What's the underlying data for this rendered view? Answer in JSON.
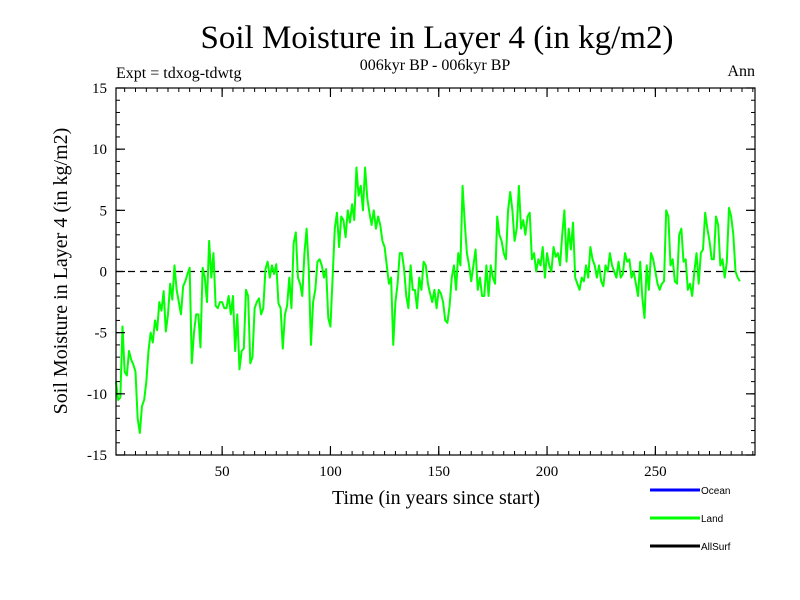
{
  "chart_data": {
    "type": "line",
    "title": "Soil Moisture in Layer 4 (in kg/m2)",
    "subtitle": "006kyr BP - 006kyr BP",
    "expt_label": "Expt = tdxog-tdwtg",
    "season_label": "Ann",
    "xlabel": "Time (in years since start)",
    "ylabel": "Soil Moisture in Layer 4 (in kg/m2)",
    "xlim": [
      1,
      296
    ],
    "ylim": [
      -15,
      15
    ],
    "x_ticks": [
      50,
      100,
      150,
      200,
      250
    ],
    "y_ticks": [
      -15,
      -10,
      -5,
      0,
      5,
      10,
      15
    ],
    "zero_line": true,
    "grid": false,
    "legend_position": "bottom-right",
    "legend": [
      {
        "name": "Ocean",
        "color": "#0000ff"
      },
      {
        "name": "Land",
        "color": "#00ff00"
      },
      {
        "name": "AllSurf",
        "color": "#000000"
      }
    ],
    "series": [
      {
        "name": "Land",
        "color": "#00ff00",
        "x_start": 1,
        "x_step": 1,
        "values": [
          -9.0,
          -10.5,
          -10.3,
          -4.5,
          -8.2,
          -8.5,
          -6.5,
          -7.2,
          -7.6,
          -8.2,
          -12.0,
          -13.2,
          -11.0,
          -10.5,
          -9.0,
          -6.5,
          -5.0,
          -5.8,
          -4.0,
          -4.8,
          -2.5,
          -3.2,
          -1.6,
          -4.9,
          -3.5,
          -1.0,
          -2.3,
          0.5,
          -1.5,
          -2.5,
          -3.5,
          -1.2,
          -0.8,
          -0.2,
          0.3,
          -7.5,
          -5.0,
          -3.5,
          -3.5,
          -6.2,
          0.3,
          -0.5,
          -2.5,
          2.5,
          -0.5,
          1.5,
          -2.8,
          -3.0,
          -2.5,
          -2.5,
          -3.0,
          -3.0,
          -2.0,
          -3.5,
          -2.0,
          -6.5,
          -3.5,
          -8.0,
          -6.5,
          -6.3,
          -1.5,
          -2.0,
          -7.5,
          -7.0,
          -3.0,
          -2.5,
          -2.2,
          -3.5,
          -3.0,
          0.2,
          0.8,
          -0.5,
          0.5,
          -0.2,
          0.6,
          -2.6,
          -3.0,
          -6.3,
          -3.5,
          -2.8,
          -0.5,
          -3.0,
          2.3,
          3.2,
          -0.5,
          -1.0,
          -2.0,
          1.5,
          3.5,
          0.2,
          -6.0,
          -2.5,
          -1.5,
          0.8,
          1.0,
          0.5,
          -0.5,
          0.2,
          -3.8,
          -4.5,
          -0.5,
          3.5,
          4.8,
          2.0,
          4.5,
          4.2,
          2.8,
          5.0,
          4.0,
          5.5,
          4.2,
          8.5,
          6.2,
          7.0,
          5.0,
          8.5,
          6.0,
          4.8,
          3.8,
          5.0,
          3.5,
          4.5,
          3.8,
          2.5,
          2.0,
          0.5,
          -1.0,
          -0.5,
          -6.0,
          -2.5,
          -1.0,
          1.5,
          1.5,
          0.2,
          -2.0,
          -3.0,
          0.5,
          -1.5,
          -1.5,
          -3.0,
          -0.5,
          -1.5,
          0.8,
          0.5,
          -1.0,
          -1.8,
          -2.5,
          -1.5,
          -3.0,
          -1.5,
          -1.8,
          -2.5,
          -4.0,
          -4.2,
          -2.8,
          -0.5,
          0.5,
          -1.5,
          1.5,
          0.5,
          7.0,
          4.0,
          1.5,
          0.5,
          -0.8,
          0.5,
          1.8,
          -1.5,
          -0.5,
          -2.0,
          -2.0,
          0.5,
          -2.0,
          0.5,
          -0.5,
          -1.0,
          4.5,
          3.0,
          2.5,
          1.5,
          1.0,
          5.0,
          6.5,
          5.0,
          2.5,
          3.5,
          7.0,
          3.5,
          4.2,
          3.0,
          4.5,
          4.8,
          1.0,
          1.5,
          0.0,
          1.0,
          0.5,
          2.0,
          -0.5,
          1.5,
          0.5,
          0.0,
          2.0,
          1.2,
          1.5,
          0.5,
          3.0,
          5.0,
          0.8,
          3.5,
          1.8,
          4.0,
          -0.5,
          -1.0,
          -1.5,
          -0.5,
          -0.8,
          0.5,
          -0.5,
          2.0,
          1.0,
          0.5,
          -0.5,
          0.5,
          -0.8,
          -1.2,
          0.5,
          0.0,
          1.5,
          0.5,
          0.0,
          -0.5,
          0.8,
          -0.5,
          -0.2,
          1.5,
          0.8,
          1.0,
          -0.5,
          0.0,
          -1.0,
          -2.0,
          0.8,
          -2.2,
          -3.8,
          0.5,
          -1.5,
          1.5,
          1.0,
          0.0,
          -1.0,
          -1.5,
          -1.0,
          -0.8,
          5.0,
          4.5,
          0.5,
          1.0,
          -0.8,
          -1.0,
          3.0,
          3.5,
          0.8,
          1.0,
          -1.5,
          -1.0,
          -2.0,
          0.0,
          1.5,
          -1.0,
          1.5,
          1.8,
          4.8,
          3.5,
          2.5,
          1.0,
          1.0,
          4.5,
          3.8,
          0.5,
          1.0,
          -0.5,
          0.8,
          5.2,
          4.5,
          3.0,
          0.0,
          -0.5,
          -0.8
        ]
      }
    ]
  }
}
